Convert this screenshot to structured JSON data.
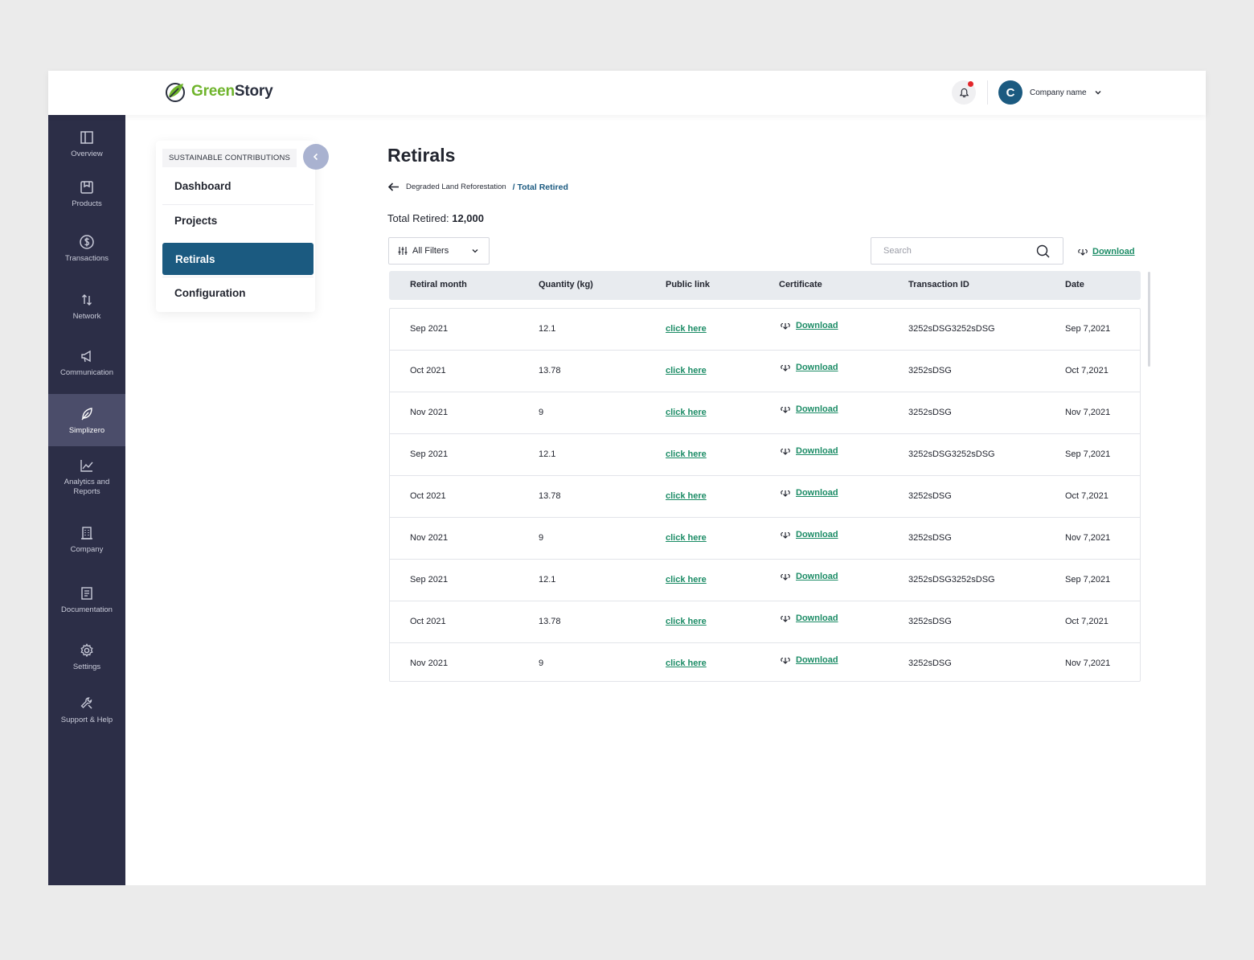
{
  "brand": {
    "part1": "Green",
    "part2": "Story"
  },
  "account": {
    "avatar_letter": "C",
    "name": "Company name"
  },
  "rail": [
    {
      "label": "Overview",
      "icon": "layout-icon"
    },
    {
      "label": "Products",
      "icon": "box-icon"
    },
    {
      "label": "Transactions",
      "icon": "dollar-icon"
    },
    {
      "label": "Network",
      "icon": "arrows-icon"
    },
    {
      "label": "Communication",
      "icon": "megaphone-icon"
    },
    {
      "label": "Simplizero",
      "icon": "leaf-icon",
      "active": true
    },
    {
      "label": "Analytics and Reports",
      "icon": "chart-icon"
    },
    {
      "label": "Company",
      "icon": "building-icon"
    },
    {
      "label": "Documentation",
      "icon": "document-icon"
    },
    {
      "label": "Settings",
      "icon": "gear-icon"
    },
    {
      "label": "Support & Help",
      "icon": "wrench-icon"
    }
  ],
  "submenu": {
    "title": "SUSTAINABLE CONTRIBUTIONS",
    "items": [
      {
        "label": "Dashboard"
      },
      {
        "label": "Projects"
      },
      {
        "label": "Retirals",
        "active": true
      },
      {
        "label": "Configuration"
      }
    ]
  },
  "page": {
    "title": "Retirals",
    "breadcrumb": {
      "parent": "Degraded Land Reforestation",
      "separator": "/",
      "current": "Total Retired"
    },
    "total_label": "Total Retired:",
    "total_value": "12,000",
    "filters_label": "All Filters",
    "search_placeholder": "Search",
    "download_label": "Download"
  },
  "table": {
    "headers": [
      "Retiral month",
      "Quantity (kg)",
      "Public link",
      "Certificate",
      "Transaction ID",
      "Date"
    ],
    "rows": [
      {
        "month": "Sep 2021",
        "qty": "12.1",
        "link": "click here",
        "cert": "Download",
        "txn": "3252sDSG3252sDSG",
        "date": "Sep 7,2021"
      },
      {
        "month": "Oct 2021",
        "qty": "13.78",
        "link": "click here",
        "cert": "Download",
        "txn": "3252sDSG",
        "date": "Oct 7,2021"
      },
      {
        "month": "Nov 2021",
        "qty": "9",
        "link": "click here",
        "cert": "Download",
        "txn": "3252sDSG",
        "date": "Nov 7,2021"
      },
      {
        "month": "Sep 2021",
        "qty": "12.1",
        "link": "click here",
        "cert": "Download",
        "txn": "3252sDSG3252sDSG",
        "date": "Sep 7,2021"
      },
      {
        "month": "Oct 2021",
        "qty": "13.78",
        "link": "click here",
        "cert": "Download",
        "txn": "3252sDSG",
        "date": "Oct 7,2021"
      },
      {
        "month": "Nov 2021",
        "qty": "9",
        "link": "click here",
        "cert": "Download",
        "txn": "3252sDSG",
        "date": "Nov 7,2021"
      },
      {
        "month": "Sep 2021",
        "qty": "12.1",
        "link": "click here",
        "cert": "Download",
        "txn": "3252sDSG3252sDSG",
        "date": "Sep 7,2021"
      },
      {
        "month": "Oct 2021",
        "qty": "13.78",
        "link": "click here",
        "cert": "Download",
        "txn": "3252sDSG",
        "date": "Oct 7,2021"
      },
      {
        "month": "Nov 2021",
        "qty": "9",
        "link": "click here",
        "cert": "Download",
        "txn": "3252sDSG",
        "date": "Nov 7,2021"
      }
    ]
  },
  "colors": {
    "rail": "#2c2e47",
    "accent": "#1b5a80",
    "link": "#1c8c66",
    "brand_green": "#6fb42c"
  }
}
